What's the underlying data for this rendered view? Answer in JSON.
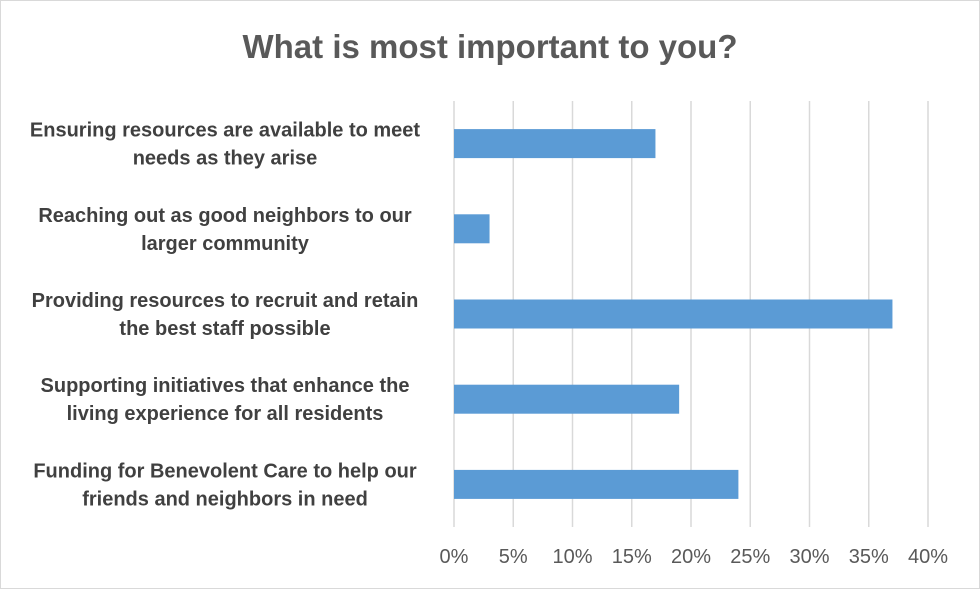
{
  "chart_data": {
    "type": "bar",
    "orientation": "horizontal",
    "title": "What is most important to you?",
    "categories": [
      [
        "Ensuring resources are available to meet",
        "needs as they arise"
      ],
      [
        "Reaching out as good neighbors to our",
        "larger community"
      ],
      [
        "Providing resources to recruit and retain",
        "the best staff possible"
      ],
      [
        "Supporting initiatives that enhance the",
        "living experience for all residents"
      ],
      [
        "Funding for Benevolent Care to help our",
        "friends and neighbors in need"
      ]
    ],
    "values": [
      17,
      3,
      37,
      19,
      24
    ],
    "xlim": [
      0,
      40
    ],
    "x_ticks": [
      0,
      5,
      10,
      15,
      20,
      25,
      30,
      35,
      40
    ],
    "x_tick_labels": [
      "0%",
      "5%",
      "10%",
      "15%",
      "20%",
      "25%",
      "30%",
      "35%",
      "40%"
    ],
    "xlabel": "",
    "ylabel": "",
    "grid": "vertical",
    "legend": "none",
    "bar_color": "#5b9bd5"
  }
}
